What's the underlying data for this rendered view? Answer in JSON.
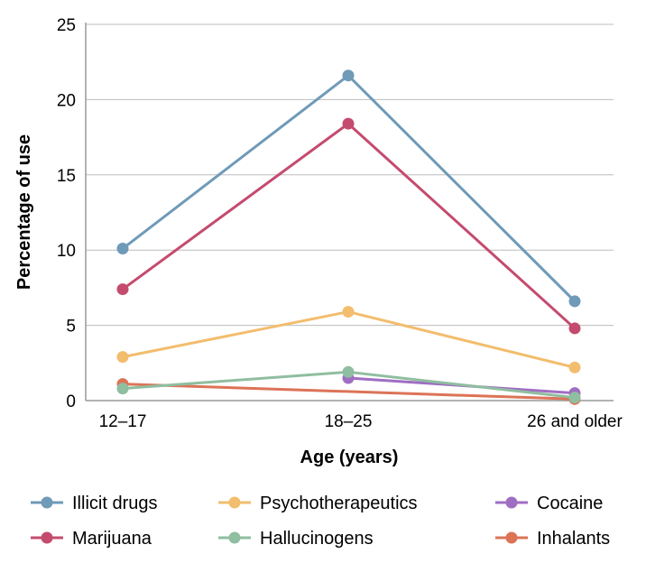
{
  "chart_data": {
    "type": "line",
    "title": "",
    "xlabel": "Age (years)",
    "ylabel": "Percentage of use",
    "categories": [
      "12–17",
      "18–25",
      "26 and older"
    ],
    "yticks": [
      "0",
      "5",
      "10",
      "15",
      "20",
      "25"
    ],
    "ylim": [
      0,
      25
    ],
    "grid": "horizontal",
    "legend_position": "bottom",
    "series": [
      {
        "name": "Illicit drugs",
        "color": "#6f9ab8",
        "values": [
          10.1,
          21.6,
          6.6
        ]
      },
      {
        "name": "Marijuana",
        "color": "#c44b6e",
        "values": [
          7.4,
          18.4,
          4.8
        ]
      },
      {
        "name": "Psychotherapeutics",
        "color": "#f2bd6d",
        "values": [
          2.9,
          5.9,
          2.2
        ]
      },
      {
        "name": "Hallucinogens",
        "color": "#8fbea0",
        "values": [
          0.8,
          1.9,
          0.2
        ]
      },
      {
        "name": "Cocaine",
        "color": "#9f6ec2",
        "values": [
          null,
          1.5,
          0.5
        ]
      },
      {
        "name": "Inhalants",
        "color": "#dc7357",
        "values": [
          1.1,
          null,
          0.1
        ]
      }
    ],
    "legend_order": [
      "Illicit drugs",
      "Psychotherapeutics",
      "Cocaine",
      "Marijuana",
      "Hallucinogens",
      "Inhalants"
    ]
  }
}
